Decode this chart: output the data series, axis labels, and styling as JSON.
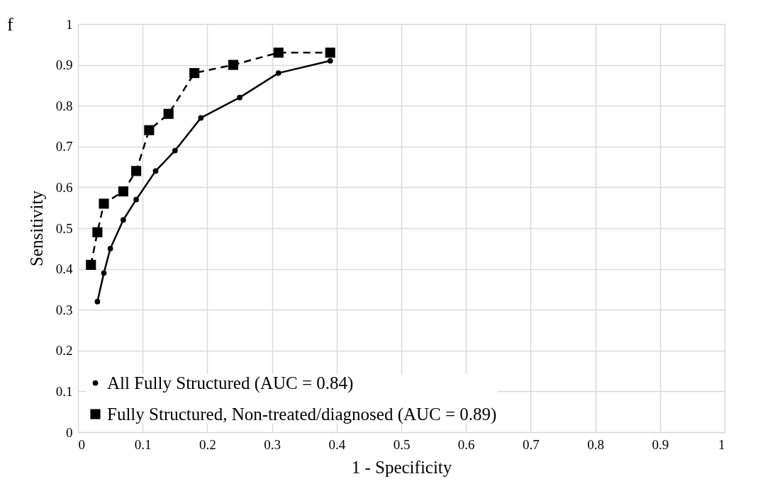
{
  "chart_data": {
    "type": "line",
    "xlabel": "1 - Specificity",
    "ylabel": "Sensitivity",
    "annotations": [
      "f"
    ],
    "series": [
      {
        "name": "All Fully Structured (AUC = 0.84)",
        "color": "#000000",
        "marker": "circle",
        "line_style": "solid",
        "x": [
          0.03,
          0.04,
          0.05,
          0.07,
          0.09,
          0.12,
          0.15,
          0.19,
          0.25,
          0.31,
          0.39
        ],
        "values": [
          0.32,
          0.39,
          0.45,
          0.52,
          0.57,
          0.64,
          0.69,
          0.77,
          0.82,
          0.88,
          0.91
        ]
      },
      {
        "name": "Fully Structured, Non-treated/diagnosed (AUC = 0.89)",
        "color": "#000000",
        "marker": "square",
        "line_style": "dashed",
        "x": [
          0.02,
          0.03,
          0.04,
          0.07,
          0.09,
          0.11,
          0.14,
          0.18,
          0.24,
          0.31,
          0.39
        ],
        "values": [
          0.41,
          0.49,
          0.56,
          0.59,
          0.64,
          0.74,
          0.78,
          0.88,
          0.9,
          0.93,
          0.93
        ]
      }
    ],
    "xlim": [
      0,
      1
    ],
    "xticks": [
      0,
      0.1,
      0.2,
      0.3,
      0.4,
      0.5,
      0.6,
      0.7,
      0.8,
      0.9,
      1
    ],
    "ylim": [
      0,
      1
    ],
    "yticks": [
      0,
      0.1,
      0.2,
      0.3,
      0.4,
      0.5,
      0.6,
      0.7,
      0.8,
      0.9,
      1
    ],
    "grid": true,
    "legend": "bottom left"
  }
}
